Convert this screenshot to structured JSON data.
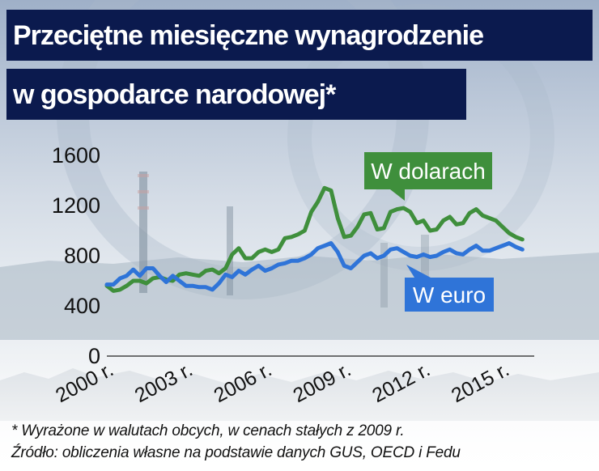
{
  "title_line1": "Przeciętne miesięczne wynagrodzenie",
  "title_line2": "w gospodarce narodowej*",
  "footnote": "* Wyrażone w walutach obcych, w cenach stałych z 2009 r.",
  "source": "Źródło: obliczenia własne na podstawie danych GUS, OECD i Fedu",
  "colors": {
    "usd": "#3f8f3c",
    "eur": "#2f74d8",
    "title_bg": "#0b1a4e"
  },
  "chart_data": {
    "type": "line",
    "title": "Przeciętne miesięczne wynagrodzenie w gospodarce narodowej*",
    "xlabel": "",
    "ylabel": "",
    "ylim": [
      0,
      1600
    ],
    "xlim": [
      2000,
      2016.2
    ],
    "y_ticks": [
      0,
      400,
      800,
      1200,
      1600
    ],
    "x_ticks": [
      {
        "value": 2000,
        "label": "2000 r."
      },
      {
        "value": 2003,
        "label": "2003 r."
      },
      {
        "value": 2006,
        "label": "2006 r."
      },
      {
        "value": 2009,
        "label": "2009 r."
      },
      {
        "value": 2012,
        "label": "2012 r."
      },
      {
        "value": 2015,
        "label": "2015 r."
      }
    ],
    "grid": false,
    "legend": "inline callouts",
    "series": [
      {
        "name": "W dolarach",
        "color": "#3f8f3c",
        "x": [
          2000.0,
          2000.25,
          2000.5,
          2000.75,
          2001.0,
          2001.25,
          2001.5,
          2001.75,
          2002.0,
          2002.25,
          2002.5,
          2002.75,
          2003.0,
          2003.25,
          2003.5,
          2003.75,
          2004.0,
          2004.25,
          2004.5,
          2004.75,
          2005.0,
          2005.25,
          2005.5,
          2005.75,
          2006.0,
          2006.25,
          2006.5,
          2006.75,
          2007.0,
          2007.25,
          2007.5,
          2007.75,
          2008.0,
          2008.25,
          2008.5,
          2008.75,
          2009.0,
          2009.25,
          2009.5,
          2009.75,
          2010.0,
          2010.25,
          2010.5,
          2010.75,
          2011.0,
          2011.25,
          2011.5,
          2011.75,
          2012.0,
          2012.25,
          2012.5,
          2012.75,
          2013.0,
          2013.25,
          2013.5,
          2013.75,
          2014.0,
          2014.25,
          2014.5,
          2014.75,
          2015.0,
          2015.25,
          2015.5,
          2015.75
        ],
        "values": [
          560,
          520,
          530,
          560,
          600,
          600,
          580,
          620,
          630,
          610,
          600,
          650,
          660,
          650,
          640,
          680,
          690,
          660,
          700,
          810,
          860,
          780,
          780,
          830,
          850,
          830,
          850,
          940,
          950,
          970,
          1000,
          1150,
          1230,
          1340,
          1320,
          1100,
          950,
          960,
          1030,
          1130,
          1140,
          1010,
          1020,
          1150,
          1170,
          1180,
          1150,
          1060,
          1080,
          1000,
          1010,
          1080,
          1110,
          1050,
          1060,
          1140,
          1170,
          1120,
          1100,
          1080,
          1030,
          980,
          950,
          930
        ]
      },
      {
        "name": "W euro",
        "color": "#2f74d8",
        "x": [
          2000.0,
          2000.25,
          2000.5,
          2000.75,
          2001.0,
          2001.25,
          2001.5,
          2001.75,
          2002.0,
          2002.25,
          2002.5,
          2002.75,
          2003.0,
          2003.25,
          2003.5,
          2003.75,
          2004.0,
          2004.25,
          2004.5,
          2004.75,
          2005.0,
          2005.25,
          2005.5,
          2005.75,
          2006.0,
          2006.25,
          2006.5,
          2006.75,
          2007.0,
          2007.25,
          2007.5,
          2007.75,
          2008.0,
          2008.25,
          2008.5,
          2008.75,
          2009.0,
          2009.25,
          2009.5,
          2009.75,
          2010.0,
          2010.25,
          2010.5,
          2010.75,
          2011.0,
          2011.25,
          2011.5,
          2011.75,
          2012.0,
          2012.25,
          2012.5,
          2012.75,
          2013.0,
          2013.25,
          2013.5,
          2013.75,
          2014.0,
          2014.25,
          2014.5,
          2014.75,
          2015.0,
          2015.25,
          2015.5,
          2015.75
        ],
        "values": [
          570,
          570,
          620,
          640,
          690,
          640,
          700,
          700,
          640,
          590,
          640,
          600,
          560,
          560,
          550,
          550,
          530,
          580,
          650,
          630,
          680,
          650,
          690,
          720,
          680,
          700,
          730,
          740,
          760,
          760,
          780,
          810,
          860,
          880,
          900,
          830,
          720,
          700,
          750,
          800,
          820,
          780,
          800,
          850,
          860,
          830,
          800,
          790,
          810,
          790,
          800,
          830,
          850,
          820,
          810,
          850,
          880,
          840,
          840,
          860,
          880,
          900,
          870,
          850
        ]
      }
    ],
    "callouts": [
      {
        "series": "W dolarach",
        "label": "W dolarach"
      },
      {
        "series": "W euro",
        "label": "W euro"
      }
    ]
  }
}
